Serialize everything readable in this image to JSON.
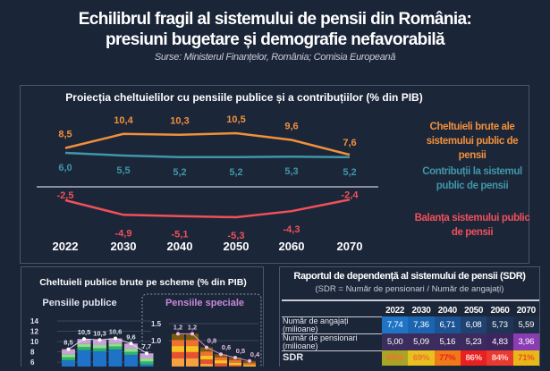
{
  "header": {
    "title_line1": "Echilibrul fragil al sistemului de pensii din România:",
    "title_line2": "presiuni bugetare și demografie nefavorabilă",
    "sources": "Surse: Ministerul Finanțelor, România; Comisia Europeană"
  },
  "chart_data": [
    {
      "type": "line",
      "title": "Proiecția cheltuielilor cu pensiile publice și a contribuțiilor (% din PIB)",
      "categories": [
        "2022",
        "2030",
        "2040",
        "2050",
        "2060",
        "2070"
      ],
      "series": [
        {
          "name": "Cheltuieli brute ale sistemului public de pensii",
          "color": "#f0903c",
          "values": [
            8.5,
            10.4,
            10.3,
            10.5,
            9.6,
            7.6
          ],
          "labels": [
            "8,5",
            "10,4",
            "10,3",
            "10,5",
            "9,6",
            "7,6"
          ]
        },
        {
          "name": "Contribuții la sistemul public de pensii",
          "color": "#3f97a8",
          "values": [
            6.0,
            5.5,
            5.2,
            5.2,
            5.3,
            5.2
          ],
          "labels": [
            "6,0",
            "5,5",
            "5,2",
            "5,2",
            "5,3",
            "5,2"
          ]
        },
        {
          "name": "Balanța sistemului public de pensii",
          "color": "#f0505a",
          "values": [
            -2.5,
            -4.9,
            -5.1,
            -5.3,
            -4.3,
            -2.4
          ],
          "labels": [
            "-2,5",
            "-4,9",
            "-5,1",
            "-5,3",
            "-4,3",
            "-2,4"
          ]
        }
      ]
    },
    {
      "type": "bar",
      "title": "Cheltuieli publice brute pe scheme (% din PIB)",
      "subtitle": "Pensiile publice",
      "yticks": [
        "14",
        "12",
        "10",
        "8",
        "6"
      ],
      "values": [
        8.5,
        10.5,
        10.3,
        10.6,
        9.6,
        7.7
      ],
      "labels": [
        "8,5",
        "10,5",
        "10,3",
        "10,6",
        "9,6",
        "7,7"
      ]
    },
    {
      "type": "bar",
      "subtitle": "Pensiile speciale",
      "yticks": [
        "1.5",
        "1.0"
      ],
      "values": [
        1.2,
        1.2,
        0.8,
        0.6,
        0.5,
        0.4
      ],
      "labels": [
        "1,2",
        "1,2",
        "0,8",
        "0,6",
        "0,5",
        "0,4"
      ]
    },
    {
      "type": "table",
      "title": "Raportul de dependență al sistemului de pensii (SDR)",
      "subtitle": "(SDR = Număr de pensionari / Număr de angajați)",
      "columns": [
        "2022",
        "2030",
        "2040",
        "2050",
        "2060",
        "2070"
      ],
      "rows": [
        {
          "label": "Număr de angajați (milioane)",
          "values": [
            "7,74",
            "7,36",
            "6,71",
            "6,08",
            "5,73",
            "5,59"
          ]
        },
        {
          "label": "Număr de pensionari (milioane)",
          "values": [
            "5,00",
            "5,09",
            "5,16",
            "5,23",
            "4,83",
            "3,96"
          ]
        },
        {
          "label": "SDR",
          "values": [
            "65%",
            "69%",
            "77%",
            "86%",
            "84%",
            "71%"
          ]
        }
      ]
    }
  ]
}
